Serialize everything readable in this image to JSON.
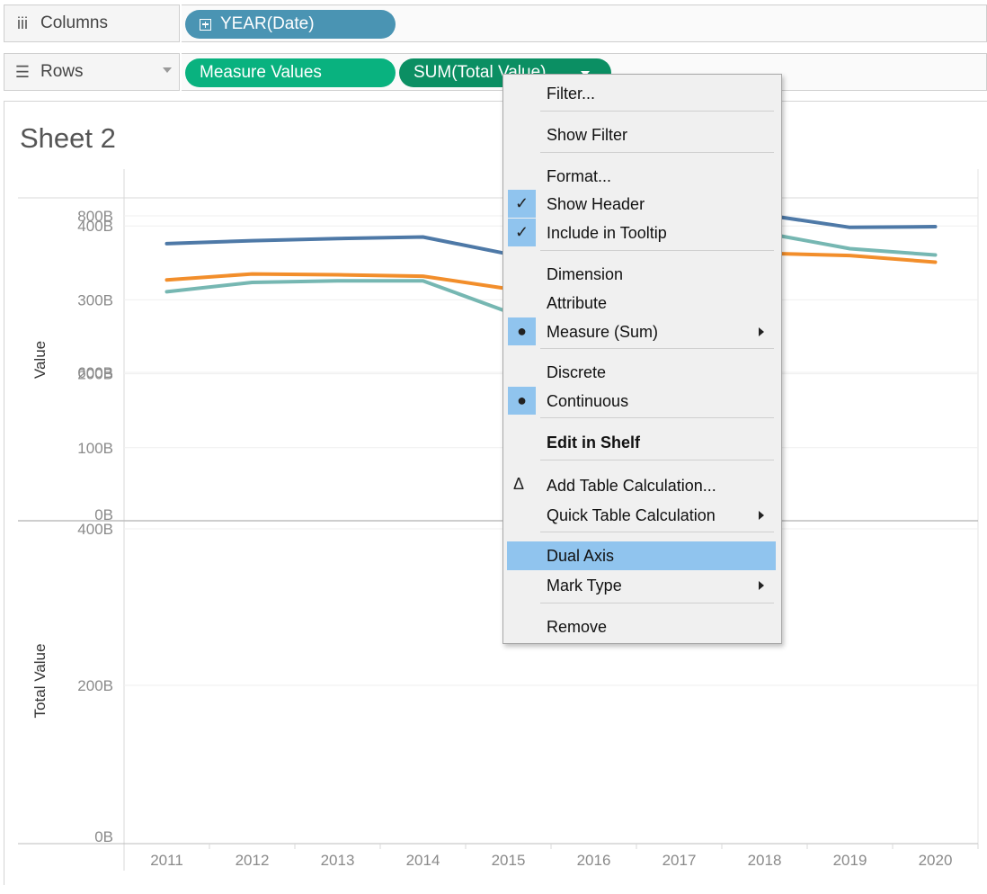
{
  "shelves": {
    "columns": {
      "label": "Columns",
      "icon": "iii",
      "pills": [
        "YEAR(Date)"
      ]
    },
    "rows": {
      "label": "Rows",
      "icon": "☰",
      "pills": [
        "Measure Values",
        "SUM(Total Value)"
      ]
    }
  },
  "sheet": {
    "title": "Sheet 2"
  },
  "colors": {
    "series_blue": "#4e79a7",
    "series_orange": "#f28e2b",
    "series_teal": "#76b7b2",
    "pill_blue": "#4a94b3",
    "pill_green": "#09b27f",
    "menu_highlight": "#90c4ee"
  },
  "chart_data": [
    {
      "type": "line",
      "ylabel": "Value",
      "x": [
        "2011",
        "2012",
        "2013",
        "2014",
        "2015",
        "2016",
        "2017",
        "2018",
        "2019",
        "2020"
      ],
      "yticks": [
        "400B",
        "300B",
        "200B",
        "100B",
        "0B"
      ],
      "ylim": [
        0,
        440
      ],
      "unit": "B",
      "series": [
        {
          "values": [
            376,
            380,
            383,
            385,
            362,
            380,
            395,
            415,
            398,
            399
          ],
          "color": "#4e79a7"
        },
        {
          "values": [
            327,
            335,
            334,
            332,
            315,
            340,
            355,
            363,
            360,
            351
          ],
          "color": "#f28e2b"
        }
      ]
    },
    {
      "type": "line",
      "ylabel": "Total Value",
      "x": [
        "2011",
        "2012",
        "2013",
        "2014",
        "2015",
        "2016",
        "2017",
        "2018",
        "2019",
        "2020"
      ],
      "yticks": [
        "800B",
        "600B",
        "400B",
        "200B",
        "0B"
      ],
      "ylim": [
        0,
        800
      ],
      "unit": "B",
      "series": [
        {
          "values": [
            703,
            715,
            717,
            717,
            677,
            720,
            750,
            778,
            758,
            750
          ],
          "color": "#76b7b2"
        }
      ]
    }
  ],
  "context_menu": {
    "items": [
      {
        "label": "Filter...",
        "mark": ""
      },
      {
        "label": "Show Filter",
        "mark": ""
      },
      {
        "label": "Format...",
        "mark": ""
      },
      {
        "label": "Show Header",
        "mark": "✓"
      },
      {
        "label": "Include in Tooltip",
        "mark": "✓"
      },
      {
        "label": "Dimension",
        "mark": ""
      },
      {
        "label": "Attribute",
        "mark": ""
      },
      {
        "label": "Measure (Sum)",
        "mark": "●",
        "submenu": true
      },
      {
        "label": "Discrete",
        "mark": ""
      },
      {
        "label": "Continuous",
        "mark": "●"
      },
      {
        "label": "Edit in Shelf",
        "mark": "",
        "bold": true
      },
      {
        "label": "Add Table Calculation...",
        "mark": "",
        "icon": "Δ"
      },
      {
        "label": "Quick Table Calculation",
        "mark": "",
        "submenu": true
      },
      {
        "label": "Dual Axis",
        "mark": "",
        "highlighted": true
      },
      {
        "label": "Mark Type",
        "mark": "",
        "submenu": true
      },
      {
        "label": "Remove",
        "mark": ""
      }
    ]
  }
}
